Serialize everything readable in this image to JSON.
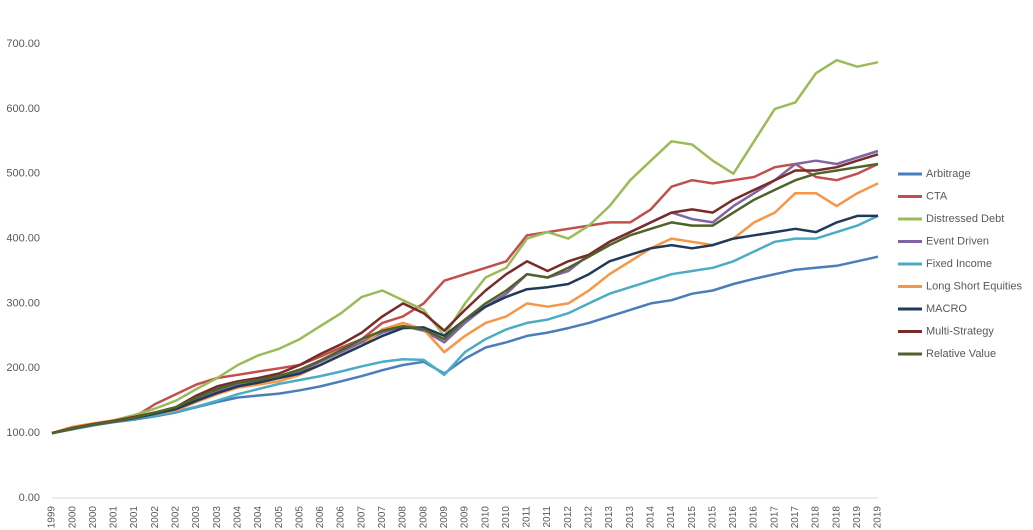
{
  "chart_data": {
    "type": "line",
    "categories": [
      "1999",
      "2000",
      "2000",
      "2001",
      "2001",
      "2002",
      "2002",
      "2003",
      "2003",
      "2004",
      "2004",
      "2005",
      "2005",
      "2006",
      "2006",
      "2007",
      "2007",
      "2008",
      "2008",
      "2009",
      "2009",
      "2010",
      "2010",
      "2011",
      "2011",
      "2012",
      "2012",
      "2013",
      "2013",
      "2014",
      "2014",
      "2015",
      "2015",
      "2016",
      "2016",
      "2017",
      "2017",
      "2018",
      "2018",
      "2019",
      "2019"
    ],
    "ylim": [
      0,
      700
    ],
    "yticks": [
      {
        "value": 0,
        "label": "0.00"
      },
      {
        "value": 100,
        "label": "100.00"
      },
      {
        "value": 200,
        "label": "200.00"
      },
      {
        "value": 300,
        "label": "300.00"
      },
      {
        "value": 400,
        "label": "400.00"
      },
      {
        "value": 500,
        "label": "500.00"
      },
      {
        "value": 600,
        "label": "600.00"
      },
      {
        "value": 700,
        "label": "700.00"
      }
    ],
    "grid": false,
    "legend": "right",
    "series": [
      {
        "name": "Arbitrage",
        "color": "#4a7ebb",
        "values": [
          100,
          106,
          112,
          117,
          121,
          126,
          132,
          140,
          148,
          155,
          158,
          161,
          166,
          172,
          180,
          188,
          197,
          205,
          210,
          192,
          215,
          232,
          240,
          250,
          255,
          262,
          270,
          280,
          290,
          300,
          305,
          315,
          320,
          330,
          338,
          345,
          352,
          355,
          358,
          365,
          372
        ]
      },
      {
        "name": "CTA",
        "color": "#c0504d",
        "values": [
          100,
          108,
          114,
          120,
          125,
          145,
          160,
          175,
          185,
          190,
          195,
          200,
          205,
          218,
          232,
          245,
          270,
          280,
          300,
          335,
          345,
          355,
          365,
          405,
          410,
          415,
          420,
          425,
          425,
          445,
          480,
          490,
          485,
          490,
          495,
          510,
          515,
          495,
          490,
          500,
          515
        ]
      },
      {
        "name": "Distressed Debt",
        "color": "#9bbb59",
        "values": [
          100,
          108,
          114,
          120,
          128,
          138,
          150,
          168,
          185,
          205,
          220,
          230,
          245,
          265,
          285,
          310,
          320,
          305,
          290,
          250,
          300,
          340,
          355,
          400,
          410,
          400,
          420,
          450,
          490,
          520,
          550,
          545,
          520,
          500,
          550,
          600,
          610,
          655,
          675,
          665,
          672
        ]
      },
      {
        "name": "Event Driven",
        "color": "#8064a2",
        "values": [
          100,
          108,
          113,
          118,
          123,
          130,
          138,
          152,
          165,
          175,
          180,
          185,
          195,
          210,
          225,
          240,
          255,
          265,
          258,
          240,
          270,
          295,
          315,
          345,
          340,
          350,
          375,
          395,
          410,
          425,
          440,
          430,
          425,
          450,
          470,
          490,
          515,
          520,
          515,
          525,
          535
        ]
      },
      {
        "name": "Fixed Income",
        "color": "#4bacc6",
        "values": [
          100,
          106,
          113,
          118,
          122,
          127,
          133,
          141,
          150,
          160,
          168,
          176,
          182,
          188,
          195,
          203,
          210,
          214,
          213,
          190,
          225,
          245,
          260,
          270,
          275,
          285,
          300,
          315,
          325,
          335,
          345,
          350,
          355,
          365,
          380,
          395,
          400,
          400,
          410,
          420,
          435
        ]
      },
      {
        "name": "Long Short Equities",
        "color": "#f79646",
        "values": [
          100,
          110,
          115,
          120,
          125,
          130,
          135,
          148,
          160,
          170,
          175,
          180,
          190,
          205,
          220,
          235,
          260,
          270,
          260,
          225,
          250,
          270,
          280,
          300,
          295,
          300,
          320,
          345,
          365,
          385,
          400,
          395,
          390,
          400,
          425,
          440,
          470,
          470,
          450,
          470,
          485
        ]
      },
      {
        "name": "MACRO",
        "color": "#1f3a5a",
        "values": [
          100,
          107,
          113,
          118,
          123,
          130,
          137,
          150,
          162,
          172,
          178,
          185,
          192,
          205,
          220,
          235,
          250,
          262,
          263,
          250,
          275,
          295,
          310,
          322,
          325,
          330,
          345,
          365,
          375,
          385,
          390,
          385,
          390,
          400,
          405,
          410,
          415,
          410,
          425,
          435,
          435
        ]
      },
      {
        "name": "Multi-Strategy",
        "color": "#772c2a",
        "values": [
          100,
          108,
          114,
          119,
          125,
          132,
          140,
          158,
          172,
          180,
          185,
          192,
          205,
          222,
          237,
          255,
          280,
          300,
          285,
          258,
          290,
          320,
          345,
          365,
          350,
          365,
          375,
          395,
          410,
          425,
          440,
          445,
          440,
          460,
          475,
          490,
          505,
          505,
          510,
          520,
          530
        ]
      },
      {
        "name": "Relative Value",
        "color": "#4f6228",
        "values": [
          100,
          107,
          113,
          118,
          124,
          132,
          140,
          155,
          168,
          178,
          182,
          188,
          198,
          212,
          228,
          245,
          258,
          265,
          260,
          245,
          275,
          300,
          320,
          345,
          340,
          355,
          372,
          390,
          405,
          415,
          425,
          420,
          420,
          440,
          460,
          475,
          490,
          500,
          505,
          510,
          515
        ]
      }
    ]
  }
}
